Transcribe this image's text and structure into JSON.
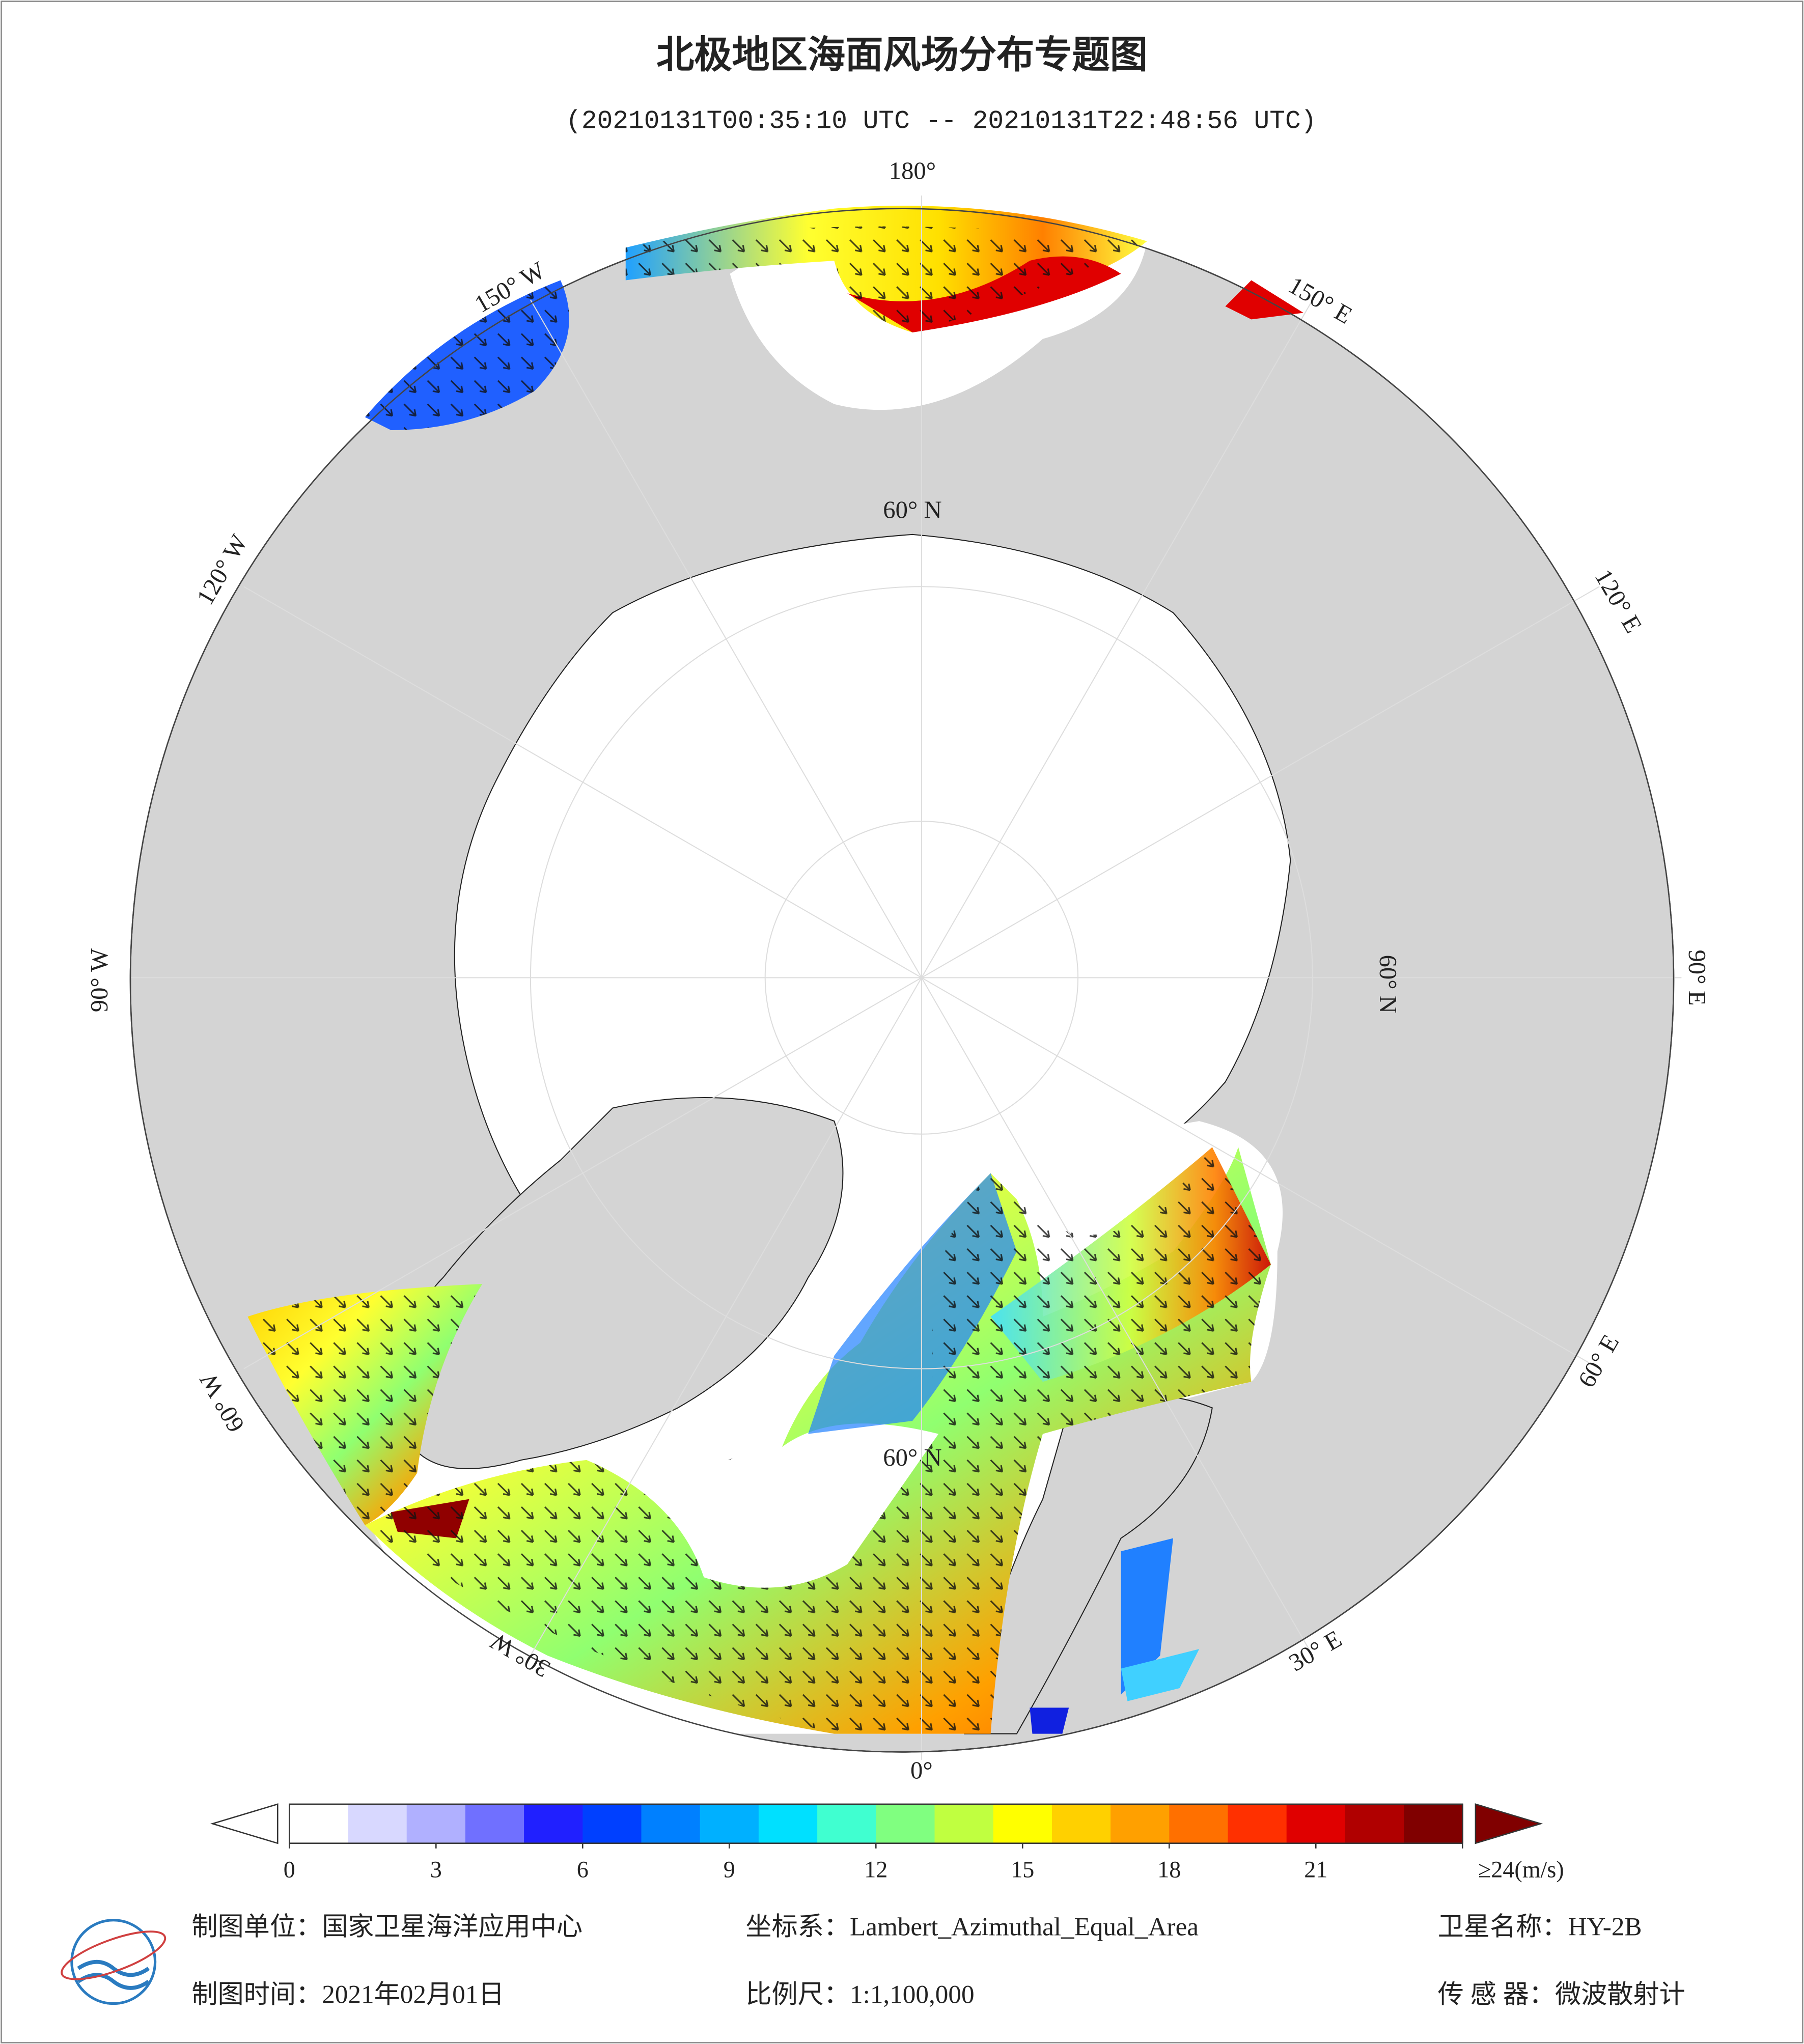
{
  "title": "北极地区海面风场分布专题图",
  "subtitle": "(20210131T00:35:10 UTC -- 20210131T22:48:56 UTC)",
  "map": {
    "graticule_labels": [
      "180°",
      "150° E",
      "120° E",
      "90° E",
      "60° E",
      "30° E",
      "0°",
      "30° W",
      "60° W",
      "90° W",
      "120° W",
      "150° W",
      "60° N"
    ]
  },
  "colorbar": {
    "lim": [
      0,
      24
    ],
    "ticks": [
      0,
      3,
      6,
      9,
      12,
      15,
      18,
      21,
      {
        "value": 24,
        "label": "≥24(m/s)"
      }
    ],
    "colors": [
      "#ffffff",
      "#d8d8ff",
      "#b0b0ff",
      "#7070ff",
      "#2020ff",
      "#0040ff",
      "#0080ff",
      "#00b0ff",
      "#00e0ff",
      "#40ffd0",
      "#80ff80",
      "#c0ff40",
      "#ffff00",
      "#ffd000",
      "#ffa000",
      "#ff7000",
      "#ff3000",
      "#e00000",
      "#b00000",
      "#800000"
    ]
  },
  "footer": {
    "unit": "制图单位：国家卫星海洋应用中心",
    "crs": "坐标系：Lambert_Azimuthal_Equal_Area",
    "satellite": "卫星名称：HY-2B",
    "date": "制图时间：2021年02月01日",
    "scale": "比例尺：1:1,100,000",
    "sensor": "传 感 器：微波散射计"
  }
}
